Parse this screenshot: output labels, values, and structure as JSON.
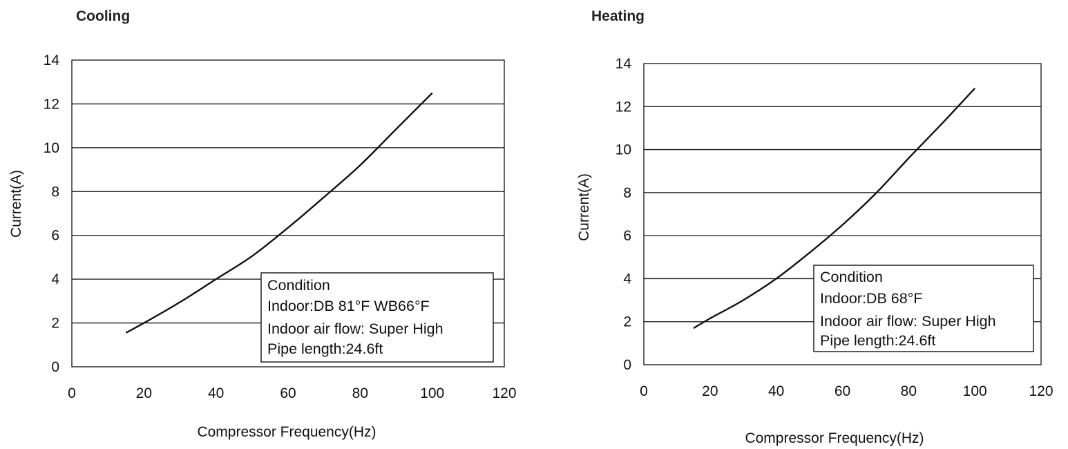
{
  "chart_data": [
    {
      "type": "line",
      "title": "Cooling",
      "xlabel": "Compressor Frequency(Hz)",
      "ylabel": "Current(A)",
      "xlim": [
        0,
        120
      ],
      "ylim": [
        0,
        14
      ],
      "xticks": [
        "0",
        "20",
        "40",
        "60",
        "80",
        "100",
        "120"
      ],
      "yticks": [
        "0",
        "2",
        "4",
        "6",
        "8",
        "10",
        "12",
        "14"
      ],
      "grid": "horizontal",
      "series": [
        {
          "x": [
            15,
            20,
            30,
            40,
            50,
            60,
            70,
            80,
            90,
            100
          ],
          "y": [
            1.55,
            2.0,
            2.95,
            4.0,
            5.05,
            6.35,
            7.75,
            9.2,
            10.85,
            12.5
          ]
        }
      ],
      "annotation": {
        "lines": [
          "Condition",
          "Indoor:DB 81°F WB66°F",
          "Indoor air flow: Super High",
          "Pipe length:24.6ft"
        ]
      }
    },
    {
      "type": "line",
      "title": "Heating",
      "xlabel": "Compressor Frequency(Hz)",
      "ylabel": "Current(A)",
      "xlim": [
        0,
        120
      ],
      "ylim": [
        0,
        14
      ],
      "xticks": [
        "0",
        "20",
        "40",
        "60",
        "80",
        "100",
        "120"
      ],
      "yticks": [
        "0",
        "2",
        "4",
        "6",
        "8",
        "10",
        "12",
        "14"
      ],
      "grid": "horizontal",
      "series": [
        {
          "x": [
            15,
            20,
            30,
            40,
            50,
            60,
            70,
            80,
            90,
            100
          ],
          "y": [
            1.7,
            2.15,
            3.0,
            4.0,
            5.2,
            6.5,
            7.95,
            9.6,
            11.2,
            12.85
          ]
        }
      ],
      "annotation": {
        "lines": [
          "Condition",
          "Indoor:DB 68°F",
          "Indoor air flow: Super High",
          "Pipe length:24.6ft"
        ]
      }
    }
  ]
}
